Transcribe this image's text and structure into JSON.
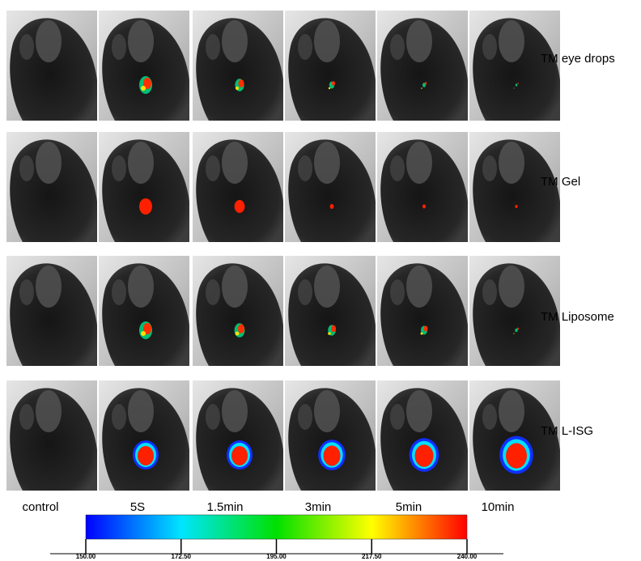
{
  "rows": [
    "TM eye drops",
    "TM Gel",
    "TM Liposome",
    "TM L-ISG"
  ],
  "columns": [
    "control",
    "5S",
    "1.5min",
    "3min",
    "5min",
    "10min"
  ],
  "colorbar": {
    "ticks": [
      "150.00",
      "172.50",
      "195.00",
      "217.50",
      "240.00"
    ]
  }
}
